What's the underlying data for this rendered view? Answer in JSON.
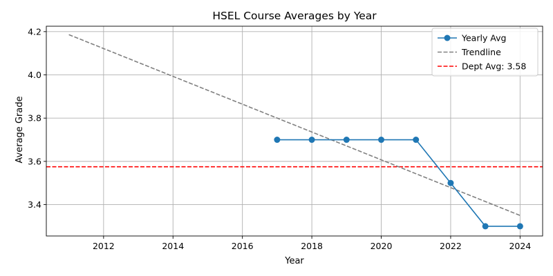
{
  "chart_data": {
    "type": "line",
    "title": "HSEL Course Averages by Year",
    "xlabel": "Year",
    "ylabel": "Average Grade",
    "xlim": [
      2010.35,
      2024.65
    ],
    "ylim": [
      3.255,
      4.225
    ],
    "xticks": [
      2012,
      2014,
      2016,
      2018,
      2020,
      2022,
      2024
    ],
    "yticks": [
      3.4,
      3.6,
      3.8,
      4.0,
      4.2
    ],
    "ytick_labels": [
      "3.4",
      "3.6",
      "3.8",
      "4.0",
      "4.2"
    ],
    "grid": true,
    "legend_position": "top-right",
    "series": [
      {
        "name": "Yearly Avg",
        "style": "solid-markers",
        "color": "#1f77b4",
        "x": [
          2017,
          2018,
          2019,
          2020,
          2021,
          2022,
          2023,
          2024
        ],
        "y": [
          3.7,
          3.7,
          3.7,
          3.7,
          3.7,
          3.5,
          3.3,
          3.3
        ]
      },
      {
        "name": "Trendline",
        "style": "dashed",
        "color": "#808080",
        "x": [
          2011,
          2024
        ],
        "y": [
          4.186,
          3.35
        ]
      }
    ],
    "reference_lines": [
      {
        "name": "Dept Avg: 3.58",
        "orientation": "horizontal",
        "value": 3.575,
        "style": "dashed",
        "color": "#ff0000"
      }
    ]
  }
}
